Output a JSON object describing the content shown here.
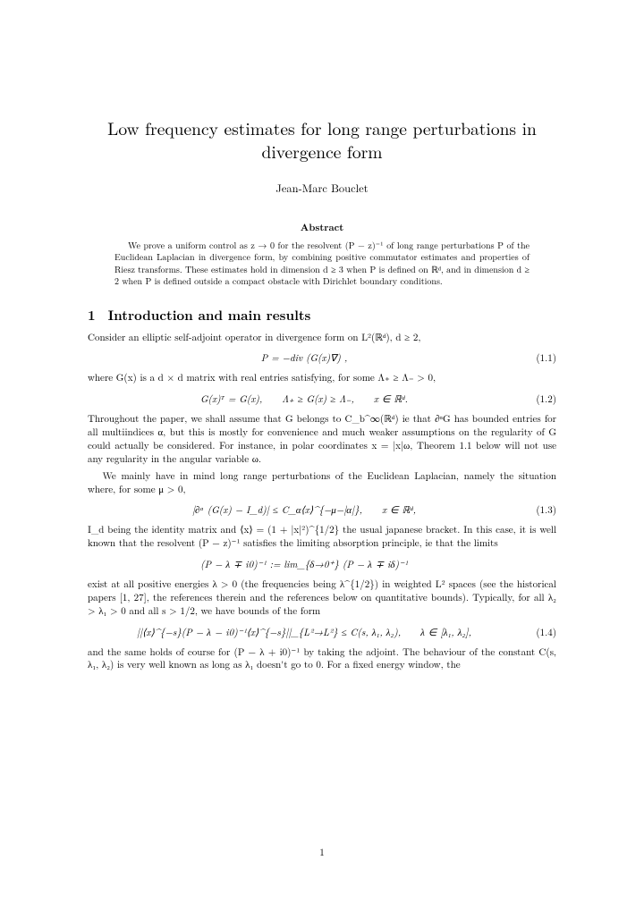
{
  "title": "Low frequency estimates for long range perturbations in divergence form",
  "author": "Jean-Marc Bouclet",
  "abstract_heading": "Abstract",
  "abstract": "We prove a uniform control as z → 0 for the resolvent (P − z)⁻¹ of long range perturbations P of the Euclidean Laplacian in divergence form, by combining positive commutator estimates and properties of Riesz transforms. These estimates hold in dimension d ≥ 3 when P is defined on ℝᵈ, and in dimension d ≥ 2 when P is defined outside a compact obstacle with Dirichlet boundary conditions.",
  "section": {
    "num": "1",
    "title": "Introduction and main results"
  },
  "p1": "Consider an elliptic self-adjoint operator in divergence form on L²(ℝᵈ), d ≥ 2,",
  "eq1": {
    "tex": "P = −div (G(x)∇) ,",
    "num": "(1.1)"
  },
  "p2": "where G(x) is a d × d matrix with real entries satisfying, for some Λ₊ ≥ Λ₋ > 0,",
  "eq2": {
    "tex": "G(x)ᵀ = G(x),  Λ₊ ≥ G(x) ≥ Λ₋,  x ∈ ℝᵈ.",
    "num": "(1.2)"
  },
  "p3": "Throughout the paper, we shall assume that G belongs to C_b^∞(ℝᵈ) ie that ∂ᵅG has bounded entries for all multiindices α, but this is mostly for convenience and much weaker assumptions on the regularity of G could actually be considered. For instance, in polar coordinates x = |x|ω, Theorem 1.1 below will not use any regularity in the angular variable ω.",
  "p4": "We mainly have in mind long range perturbations of the Euclidean Laplacian, namely the situation where, for some μ > 0,",
  "eq3": {
    "tex": "|∂ᵅ (G(x) − I_d)| ≤ C_α⟨x⟩^{−μ−|α|},  x ∈ ℝᵈ,",
    "num": "(1.3)"
  },
  "p5": "I_d being the identity matrix and ⟨x⟩ = (1 + |x|²)^{1/2} the usual japanese bracket. In this case, it is well known that the resolvent (P − z)⁻¹ satisfies the limiting absorption principle, ie that the limits",
  "eq4": {
    "tex": "(P − λ ∓ i0)⁻¹ := lim_{δ→0⁺} (P − λ ∓ iδ)⁻¹"
  },
  "p6": "exist at all positive energies λ > 0 (the frequencies being λ^{1/2}) in weighted L² spaces (see the historical papers [1, 27], the references therein and the references below on quantitative bounds). Typically, for all λ₂ > λ₁ > 0 and all s > 1/2, we have bounds of the form",
  "eq5": {
    "tex": "||⟨x⟩^{−s}(P − λ − i0)⁻¹⟨x⟩^{−s}||_{L²→L²} ≤ C(s, λ₁, λ₂),  λ ∈ [λ₁, λ₂],",
    "num": "(1.4)"
  },
  "p7": "and the same holds of course for (P − λ + i0)⁻¹ by taking the adjoint. The behaviour of the constant C(s, λ₁, λ₂) is very well known as long as λ₁ doesn't go to 0. For a fixed energy window, the",
  "page_number": "1"
}
